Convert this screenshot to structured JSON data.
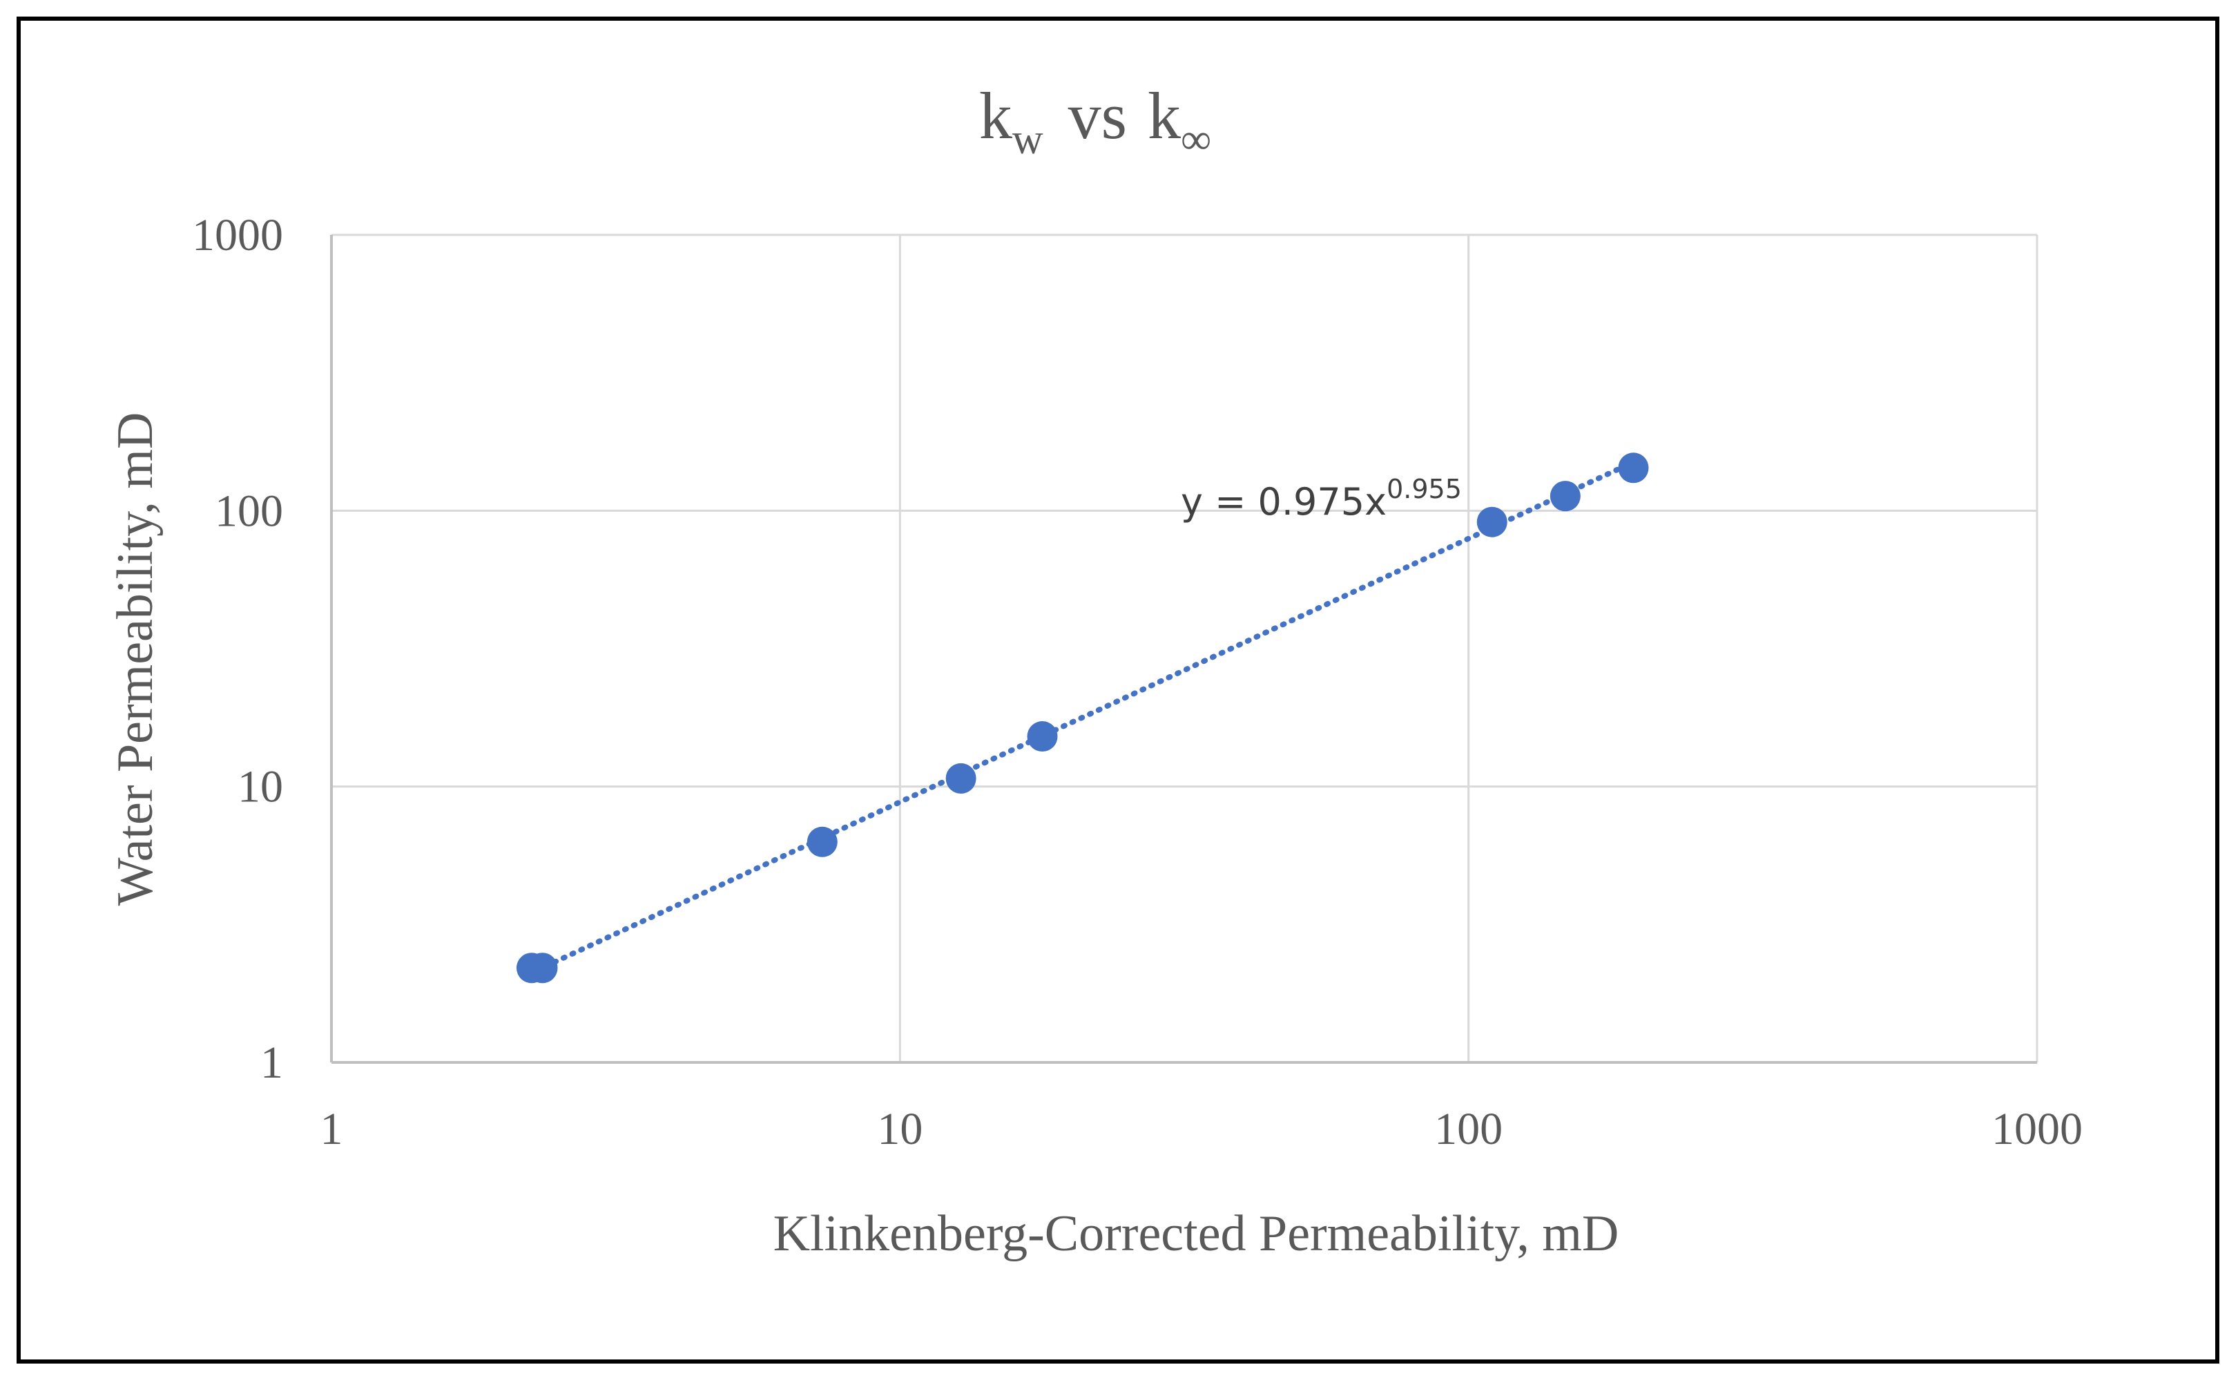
{
  "chart_data": {
    "type": "scatter",
    "title": {
      "main_k": "k",
      "sub_w": "w",
      "vs": "vs",
      "main_k2": "k",
      "sub_inf": "∞"
    },
    "xlabel": "Klinkenberg-Corrected Permeability, mD",
    "ylabel": "Water Permeability, mD",
    "xscale": "log",
    "yscale": "log",
    "xlim": [
      1,
      1000
    ],
    "ylim": [
      1,
      1000
    ],
    "xticks": [
      1,
      10,
      100,
      1000
    ],
    "xtick_labels": [
      "1",
      "10",
      "100",
      "1000"
    ],
    "yticks": [
      1,
      10,
      100,
      1000
    ],
    "ytick_labels": [
      "1",
      "10",
      "100",
      "1000"
    ],
    "grid": true,
    "series": [
      {
        "name": "kw",
        "color": "#4472C4",
        "points": [
          {
            "x": 2.25,
            "y": 2.2
          },
          {
            "x": 2.35,
            "y": 2.2
          },
          {
            "x": 7.3,
            "y": 6.3
          },
          {
            "x": 12.8,
            "y": 10.7
          },
          {
            "x": 17.8,
            "y": 15.2
          },
          {
            "x": 110,
            "y": 91
          },
          {
            "x": 148,
            "y": 113
          },
          {
            "x": 195,
            "y": 143
          }
        ]
      }
    ],
    "trendline": {
      "type": "power",
      "coefficient": 0.975,
      "exponent": 0.955,
      "x_range": [
        2.3,
        195
      ],
      "color": "#4472C4",
      "label_base": "y = 0.975x",
      "label_exp": "0.955"
    }
  }
}
